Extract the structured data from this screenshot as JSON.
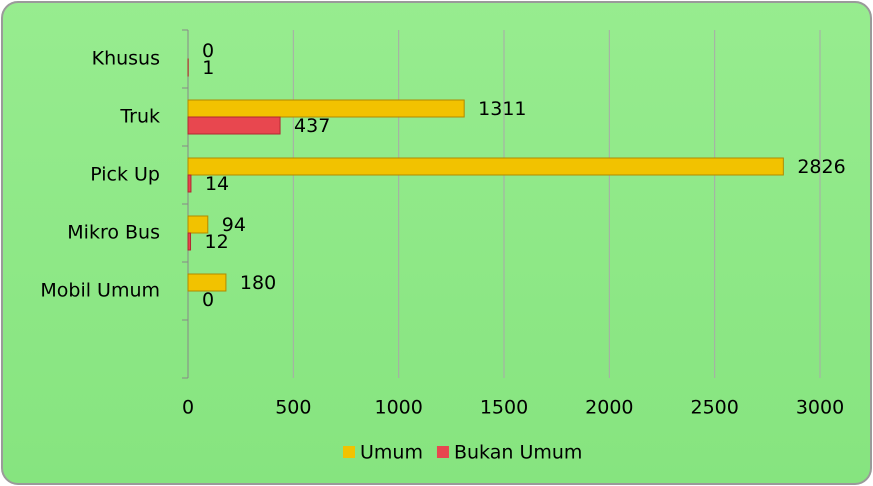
{
  "chart_data": {
    "type": "hbar",
    "categories": [
      "Khusus",
      "Truk",
      "Pick Up",
      "Mikro Bus",
      "Mobil Umum",
      null
    ],
    "series": [
      {
        "name": "Umum",
        "color": "#f2c200",
        "values": [
          0,
          1311,
          2826,
          94,
          180,
          null
        ]
      },
      {
        "name": "Bukan Umum",
        "color": "#e8474f",
        "values": [
          1,
          437,
          14,
          12,
          0,
          null
        ]
      }
    ],
    "xlim": [
      0,
      3000
    ],
    "xticks": [
      0,
      500,
      1000,
      1500,
      2000,
      2500,
      3000
    ],
    "grid": true,
    "legend": "bottom"
  }
}
